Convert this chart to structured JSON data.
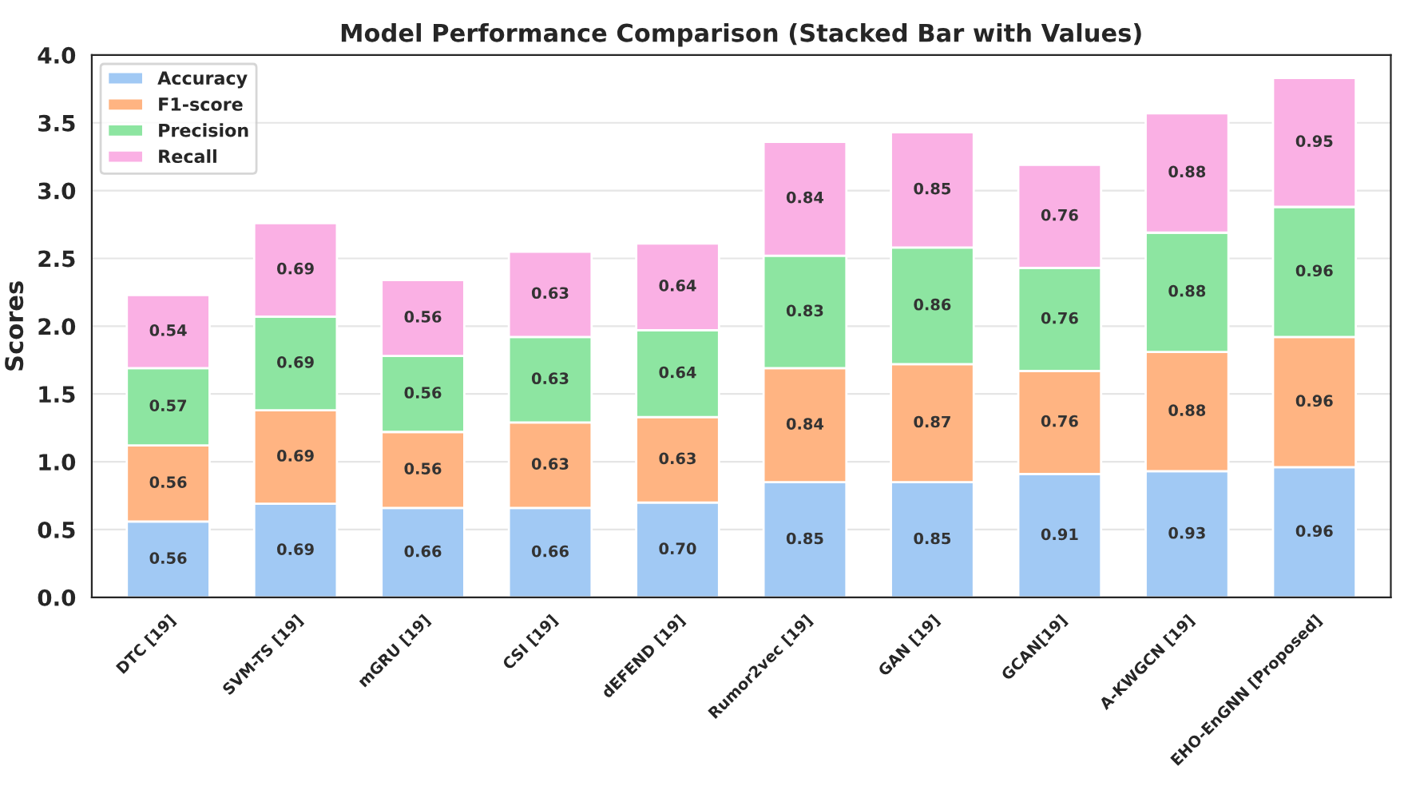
{
  "chart_data": {
    "type": "bar",
    "title": "Model Performance Comparison (Stacked Bar with Values)",
    "ylabel": "Scores",
    "categories": [
      "DTC [19]",
      "SVM-TS [19]",
      "mGRU [19]",
      "CSI [19]",
      "dEFEND [19]",
      "Rumor2vec [19]",
      "GAN [19]",
      "GCAN[19]",
      "A-KWGCN [19]",
      "EHO-EnGNN [Proposed]"
    ],
    "series": [
      {
        "name": "Accuracy",
        "color": "#a1c9f4",
        "values": [
          0.56,
          0.69,
          0.66,
          0.66,
          0.7,
          0.85,
          0.85,
          0.91,
          0.93,
          0.96
        ],
        "value_labels": [
          "0.56",
          "0.69",
          "0.66",
          "0.66",
          "0.70",
          "0.85",
          "0.85",
          "0.91",
          "0.93",
          "0.96"
        ]
      },
      {
        "name": "F1-score",
        "color": "#ffb482",
        "values": [
          0.56,
          0.69,
          0.56,
          0.63,
          0.63,
          0.84,
          0.87,
          0.76,
          0.88,
          0.96
        ],
        "value_labels": [
          "0.56",
          "0.69",
          "0.56",
          "0.63",
          "0.63",
          "0.84",
          "0.87",
          "0.76",
          "0.88",
          "0.96"
        ]
      },
      {
        "name": "Precision",
        "color": "#8de5a1",
        "values": [
          0.57,
          0.69,
          0.56,
          0.63,
          0.64,
          0.83,
          0.86,
          0.76,
          0.88,
          0.96
        ],
        "value_labels": [
          "0.57",
          "0.69",
          "0.56",
          "0.63",
          "0.64",
          "0.83",
          "0.86",
          "0.76",
          "0.88",
          "0.96"
        ]
      },
      {
        "name": "Recall",
        "color": "#fab0e4",
        "values": [
          0.54,
          0.69,
          0.56,
          0.63,
          0.64,
          0.84,
          0.85,
          0.76,
          0.88,
          0.95
        ],
        "value_labels": [
          "0.54",
          "0.69",
          "0.56",
          "0.63",
          "0.64",
          "0.84",
          "0.85",
          "0.76",
          "0.88",
          "0.95"
        ]
      }
    ],
    "stacked": true,
    "ylim": [
      0,
      4.0
    ],
    "yticks": [
      {
        "value": 0,
        "label": "0.0"
      },
      {
        "value": 0.5,
        "label": "0.5"
      },
      {
        "value": 1,
        "label": "1.0"
      },
      {
        "value": 1.5,
        "label": "1.5"
      },
      {
        "value": 2,
        "label": "2.0"
      },
      {
        "value": 2.5,
        "label": "2.5"
      },
      {
        "value": 3,
        "label": "3.0"
      },
      {
        "value": 3.5,
        "label": "3.5"
      },
      {
        "value": 4,
        "label": "4.0"
      }
    ],
    "grid": "y",
    "legend": "top left"
  }
}
